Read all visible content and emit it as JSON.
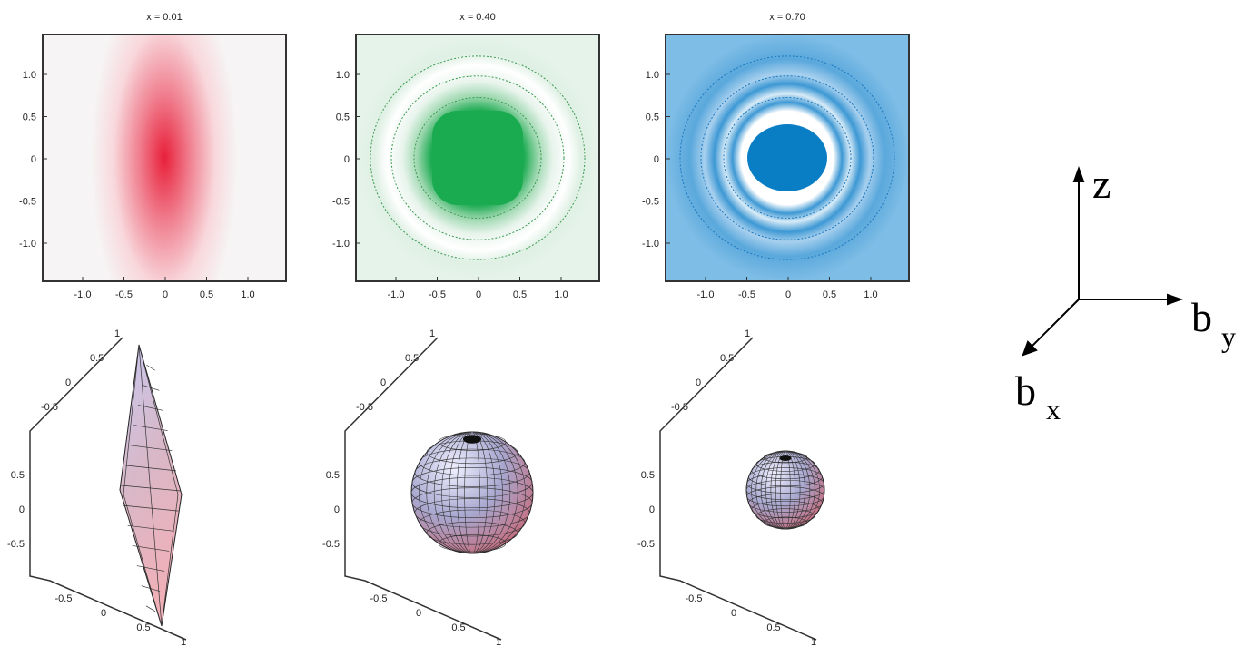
{
  "panels": [
    {
      "title": "x = 0.01",
      "y_ticks": [
        "1.0",
        "0.5",
        "0",
        "-0.5",
        "-1.0"
      ],
      "x_ticks": [
        "-1.0",
        "-0.5",
        "0",
        "0.5",
        "1.0"
      ]
    },
    {
      "title": "x = 0.40",
      "y_ticks": [
        "1.0",
        "0.5",
        "0",
        "-0.5",
        "-1.0"
      ],
      "x_ticks": [
        "-1.0",
        "-0.5",
        "0",
        "0.5",
        "1.0"
      ]
    },
    {
      "title": "x = 0.70",
      "y_ticks": [
        "1.0",
        "0.5",
        "0",
        "-0.5",
        "-1.0"
      ],
      "x_ticks": [
        "-1.0",
        "-0.5",
        "0",
        "0.5",
        "1.0"
      ]
    }
  ],
  "surfaces": [
    {
      "top_ticks": [
        "-0.5",
        "0",
        "0.5",
        "1"
      ],
      "left_ticks": [
        "0.5",
        "0",
        "-0.5"
      ],
      "bottom_ticks": [
        "-0.5",
        "0",
        "0.5",
        "1"
      ]
    },
    {
      "top_ticks": [
        "-0.5",
        "0",
        "0.5",
        "1"
      ],
      "left_ticks": [
        "0.5",
        "0",
        "-0.5"
      ],
      "bottom_ticks": [
        "-0.5",
        "0",
        "0.5",
        "1"
      ]
    },
    {
      "top_ticks": [
        "-0.5",
        "0",
        "0.5",
        "1"
      ],
      "left_ticks": [
        "0.5",
        "0",
        "-0.5"
      ],
      "bottom_ticks": [
        "-0.5",
        "0",
        "0.5",
        "1"
      ]
    }
  ],
  "axes": {
    "z": "z",
    "by": {
      "main": "b",
      "sub": "y"
    },
    "bx": {
      "main": "b",
      "sub": "x"
    }
  }
}
